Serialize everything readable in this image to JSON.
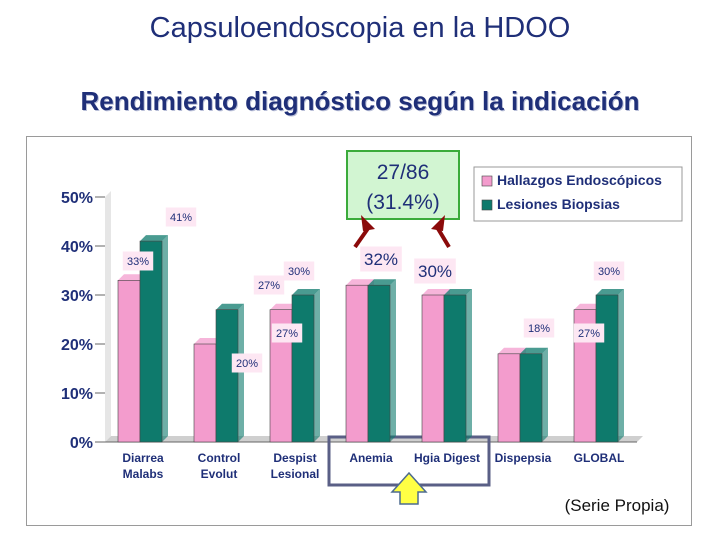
{
  "slide": {
    "title": "Capsuloendoscopia en la HDOO",
    "subtitle": "Rendimiento diagnóstico según la indicación"
  },
  "chart_data": {
    "type": "bar",
    "categories": [
      [
        "Diarrea",
        "Malabs"
      ],
      [
        "Control",
        "Evolut"
      ],
      [
        "Despist",
        "Lesional"
      ],
      [
        "Anemia"
      ],
      [
        "Hgia Digest"
      ],
      [
        "Dispepsia"
      ],
      [
        "GLOBAL"
      ]
    ],
    "series": [
      {
        "name": "Hallazgos Endoscópicos",
        "color": "#f39ccd",
        "values": [
          33,
          20,
          27,
          32,
          30,
          18,
          27
        ]
      },
      {
        "name": "Lesiones Biopsias",
        "color": "#0e7a6c",
        "values": [
          41,
          27,
          30,
          32,
          30,
          18,
          30
        ]
      }
    ],
    "series1_labels": [
      "33%",
      "20%",
      "27%",
      "",
      "",
      "18%",
      "27%"
    ],
    "series2_labels": [
      "41%",
      "27%",
      "30%",
      "",
      "",
      "",
      "30%"
    ],
    "shared_labels": [
      "",
      "",
      "",
      "32%",
      "30%",
      "",
      ""
    ],
    "ylim": [
      0,
      50
    ],
    "yticks": [
      "0%",
      "10%",
      "20%",
      "30%",
      "40%",
      "50%"
    ],
    "legend_position": "top-right",
    "callout": {
      "line1": "27/86",
      "line2": "(31.4%)"
    },
    "highlighted_categories": [
      "Anemia",
      "Hgia Digest"
    ],
    "source_note": "(Serie Propia)",
    "colors": {
      "label_box": "#fde7f3",
      "callout_box": "#d2f5d2",
      "callout_border": "#3bab3b",
      "arrow": "#8b0a0a",
      "highlight_box": "#5a5f86",
      "up_arrow_fill": "#ffff44",
      "up_arrow_stroke": "#4d6b8f",
      "text": "#1f2f78"
    }
  }
}
